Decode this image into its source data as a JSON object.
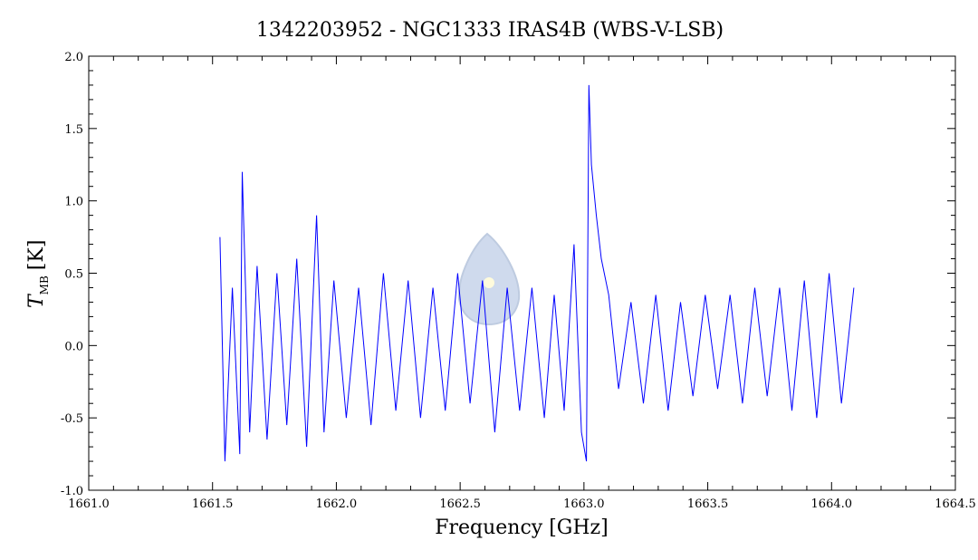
{
  "chart_data": {
    "type": "line",
    "title": "1342203952 - NGC1333 IRAS4B (WBS-V-LSB)",
    "xlabel": "Frequency [GHz]",
    "ylabel_main": "T",
    "ylabel_sub": "MB",
    "ylabel_unit": "[K]",
    "xlim": [
      1661.0,
      1664.5
    ],
    "ylim": [
      -1.0,
      2.0
    ],
    "x_ticks": [
      1661.0,
      1661.5,
      1662.0,
      1662.5,
      1663.0,
      1663.5,
      1664.0,
      1664.5
    ],
    "x_tick_labels": [
      "1661.0",
      "1661.5",
      "1662.0",
      "1662.5",
      "1663.0",
      "1663.5",
      "1664.0",
      "1664.5"
    ],
    "y_ticks": [
      -1.0,
      -0.5,
      0.0,
      0.5,
      1.0,
      1.5,
      2.0
    ],
    "y_tick_labels": [
      "-1.0",
      "-0.5",
      "0.0",
      "0.5",
      "1.0",
      "1.5",
      "2.0"
    ],
    "grid": false,
    "series": [
      {
        "color": "#0000ff",
        "x": [
          1661.53,
          1661.55,
          1661.58,
          1661.61,
          1661.62,
          1661.65,
          1661.68,
          1661.72,
          1661.76,
          1661.8,
          1661.84,
          1661.88,
          1661.92,
          1661.95,
          1661.99,
          1662.04,
          1662.09,
          1662.14,
          1662.19,
          1662.24,
          1662.29,
          1662.34,
          1662.39,
          1662.44,
          1662.49,
          1662.54,
          1662.59,
          1662.64,
          1662.69,
          1662.74,
          1662.79,
          1662.84,
          1662.88,
          1662.92,
          1662.96,
          1662.99,
          1663.01,
          1663.02,
          1663.03,
          1663.05,
          1663.07,
          1663.1,
          1663.14,
          1663.19,
          1663.24,
          1663.29,
          1663.34,
          1663.39,
          1663.44,
          1663.49,
          1663.54,
          1663.59,
          1663.64,
          1663.69,
          1663.74,
          1663.79,
          1663.84,
          1663.89,
          1663.94,
          1663.99,
          1664.04,
          1664.09
        ],
        "y": [
          0.75,
          -0.8,
          0.4,
          -0.75,
          1.2,
          -0.6,
          0.55,
          -0.65,
          0.5,
          -0.55,
          0.6,
          -0.7,
          0.9,
          -0.6,
          0.45,
          -0.5,
          0.4,
          -0.55,
          0.5,
          -0.45,
          0.45,
          -0.5,
          0.4,
          -0.45,
          0.5,
          -0.4,
          0.45,
          -0.6,
          0.4,
          -0.45,
          0.4,
          -0.5,
          0.35,
          -0.45,
          0.7,
          -0.6,
          -0.8,
          1.8,
          1.25,
          0.9,
          0.6,
          0.35,
          -0.3,
          0.3,
          -0.4,
          0.35,
          -0.45,
          0.3,
          -0.35,
          0.35,
          -0.3,
          0.35,
          -0.4,
          0.4,
          -0.35,
          0.4,
          -0.45,
          0.45,
          -0.5,
          0.5,
          -0.4,
          0.4
        ]
      }
    ]
  }
}
